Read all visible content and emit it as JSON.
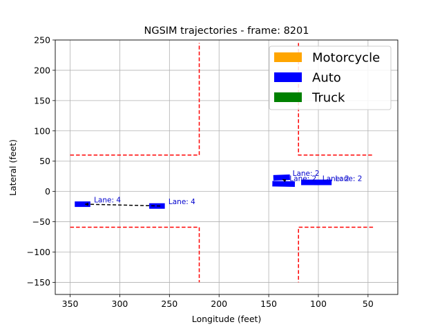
{
  "chart_data": {
    "type": "scatter",
    "title": "NGSIM trajectories - frame: 8201",
    "xlabel": "Longitude (feet)",
    "ylabel": "Lateral (feet)",
    "xlim": [
      365,
      20
    ],
    "ylim": [
      -170,
      250
    ],
    "x_inverted": true,
    "grid": true,
    "xticks": [
      350,
      300,
      250,
      200,
      150,
      100,
      50
    ],
    "yticks": [
      250,
      200,
      150,
      100,
      50,
      0,
      -50,
      -100,
      -150
    ],
    "xtick_labels": [
      "350",
      "300",
      "250",
      "200",
      "150",
      "100",
      "50"
    ],
    "ytick_labels": [
      "250",
      "200",
      "150",
      "100",
      "50",
      "0",
      "−50",
      "−100",
      "−150"
    ],
    "legend": {
      "location": "upper right",
      "entries": [
        {
          "label": "Motorcycle",
          "color": "#ffa500"
        },
        {
          "label": "Auto",
          "color": "#0000ff"
        },
        {
          "label": "Truck",
          "color": "#008000"
        }
      ]
    },
    "road_boundaries": {
      "color": "#ff0000",
      "style": "dashed",
      "lines": [
        [
          [
            350,
            60
          ],
          [
            220,
            60
          ],
          [
            220,
            245
          ]
        ],
        [
          [
            120,
            245
          ],
          [
            120,
            60
          ],
          [
            45,
            60
          ]
        ],
        [
          [
            350,
            -59
          ],
          [
            220,
            -59
          ],
          [
            220,
            -150
          ]
        ],
        [
          [
            45,
            -59
          ],
          [
            120,
            -59
          ],
          [
            120,
            -150
          ]
        ]
      ]
    },
    "vehicles": [
      {
        "type": "Auto",
        "x_start": 345,
        "x_end": 330,
        "y": -21,
        "tilt": 0,
        "lane_label": "Lane: 4",
        "label_x": 326,
        "label_y": -18
      },
      {
        "type": "Auto",
        "x_start": 270,
        "x_end": 255,
        "y": -24,
        "tilt": 0,
        "lane_label": "Lane: 4",
        "label_x": 251,
        "label_y": -21
      },
      {
        "type": "Auto",
        "x_start": 145,
        "x_end": 129,
        "y": 23,
        "tilt": 2,
        "lane_label": "Lane: 2",
        "label_x": 126,
        "label_y": 26
      },
      {
        "type": "Auto",
        "x_start": 146,
        "x_end": 124,
        "y": 12.5,
        "tilt": -1,
        "lane_label": "Lane: 2",
        "label_x": 129,
        "label_y": 17
      },
      {
        "type": "Auto",
        "x_start": 117,
        "x_end": 100,
        "y": 15,
        "tilt": 0,
        "lane_label": "Lane: 2",
        "label_x": 96,
        "label_y": 17
      },
      {
        "type": "Auto",
        "x_start": 104,
        "x_end": 87,
        "y": 15,
        "tilt": 0,
        "lane_label": "Lane: 2",
        "label_x": 83,
        "label_y": 17
      }
    ],
    "trajectories": [
      {
        "color": "#000000",
        "style": "dashed",
        "points": [
          [
            335,
            -21
          ],
          [
            259,
            -24
          ]
        ],
        "arrow": "start"
      },
      {
        "color": "#000000",
        "style": "dashed",
        "points": [
          [
            136,
            20
          ],
          [
            131,
            16
          ]
        ],
        "arrow": "start"
      }
    ]
  }
}
